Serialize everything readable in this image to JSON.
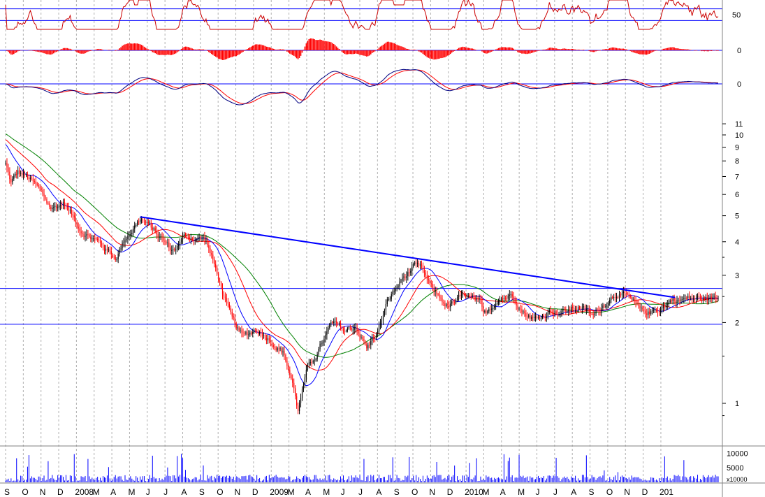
{
  "chart_data": {
    "type": "candlestick",
    "title": "",
    "colors": {
      "up_candle": "#000000",
      "down_candle": "#ff0000",
      "ma_short": "#0000ff",
      "ma_mid": "#ff0000",
      "ma_long": "#008000",
      "trendline": "#0000ff",
      "horizontal_lines": "#0000ff",
      "oscillator_line": "#cc0000",
      "histogram": "#ff0000",
      "signal_line": "#000080",
      "volume": "#0000ff",
      "gridlines": "#b0b0b0"
    },
    "x_axis": {
      "months": [
        "S",
        "O",
        "N",
        "D",
        "2008",
        "M",
        "A",
        "M",
        "J",
        "J",
        "A",
        "S",
        "O",
        "N",
        "D",
        "2009",
        "M",
        "A",
        "M",
        "J",
        "J",
        "A",
        "S",
        "O",
        "N",
        "D",
        "2010",
        "M",
        "A",
        "M",
        "J",
        "J",
        "A",
        "S",
        "O",
        "N",
        "D",
        "201"
      ],
      "start": "2007-09",
      "end": "2011-01"
    },
    "price_panel": {
      "scale": "log",
      "ylim": [
        0.8,
        12
      ],
      "tick_labels": [
        "11",
        "10",
        "9",
        "8",
        "7",
        "6",
        "5",
        "4",
        "3",
        "2",
        "1"
      ],
      "tick_values": [
        11,
        10,
        9,
        8,
        7,
        6,
        5,
        4,
        3,
        2,
        1
      ],
      "anchors": [
        {
          "m": 0.0,
          "v": 7.8
        },
        {
          "m": 0.3,
          "v": 6.6
        },
        {
          "m": 0.7,
          "v": 7.2
        },
        {
          "m": 1.3,
          "v": 6.9
        },
        {
          "m": 1.8,
          "v": 6.3
        },
        {
          "m": 2.6,
          "v": 5.3
        },
        {
          "m": 3.3,
          "v": 5.6
        },
        {
          "m": 4.2,
          "v": 4.5
        },
        {
          "m": 5.0,
          "v": 4.1
        },
        {
          "m": 5.6,
          "v": 3.8
        },
        {
          "m": 6.2,
          "v": 3.5
        },
        {
          "m": 6.8,
          "v": 4.2
        },
        {
          "m": 7.6,
          "v": 4.9
        },
        {
          "m": 8.5,
          "v": 4.3
        },
        {
          "m": 9.4,
          "v": 3.7
        },
        {
          "m": 10.2,
          "v": 4.2
        },
        {
          "m": 11.3,
          "v": 4.1
        },
        {
          "m": 12.1,
          "v": 2.8
        },
        {
          "m": 12.8,
          "v": 2.0
        },
        {
          "m": 13.4,
          "v": 1.75
        },
        {
          "m": 14.2,
          "v": 1.9
        },
        {
          "m": 15.0,
          "v": 1.75
        },
        {
          "m": 15.7,
          "v": 1.55
        },
        {
          "m": 16.2,
          "v": 1.2
        },
        {
          "m": 16.5,
          "v": 0.95
        },
        {
          "m": 17.0,
          "v": 1.3
        },
        {
          "m": 17.6,
          "v": 1.55
        },
        {
          "m": 18.4,
          "v": 1.95
        },
        {
          "m": 19.2,
          "v": 1.85
        },
        {
          "m": 19.8,
          "v": 1.95
        },
        {
          "m": 20.4,
          "v": 1.6
        },
        {
          "m": 21.0,
          "v": 1.85
        },
        {
          "m": 21.6,
          "v": 2.4
        },
        {
          "m": 22.4,
          "v": 2.9
        },
        {
          "m": 23.0,
          "v": 3.2
        },
        {
          "m": 23.5,
          "v": 3.1
        },
        {
          "m": 24.1,
          "v": 2.6
        },
        {
          "m": 25.0,
          "v": 2.3
        },
        {
          "m": 26.0,
          "v": 2.5
        },
        {
          "m": 26.8,
          "v": 2.3
        },
        {
          "m": 27.0,
          "v": 2.05
        },
        {
          "m": 27.8,
          "v": 2.5
        },
        {
          "m": 28.7,
          "v": 2.55
        },
        {
          "m": 29.3,
          "v": 2.2
        },
        {
          "m": 30.0,
          "v": 2.05
        },
        {
          "m": 30.8,
          "v": 2.25
        },
        {
          "m": 31.6,
          "v": 2.2
        },
        {
          "m": 32.4,
          "v": 2.3
        },
        {
          "m": 33.2,
          "v": 2.1
        },
        {
          "m": 34.0,
          "v": 2.45
        },
        {
          "m": 34.6,
          "v": 2.65
        },
        {
          "m": 35.3,
          "v": 2.4
        },
        {
          "m": 35.9,
          "v": 2.15
        },
        {
          "m": 36.6,
          "v": 2.2
        },
        {
          "m": 37.3,
          "v": 2.35
        },
        {
          "m": 37.7,
          "v": 2.45
        }
      ],
      "trendline": {
        "from": {
          "m": 7.6,
          "v": 4.95
        },
        "to": {
          "m": 37.8,
          "v": 2.48
        }
      },
      "horizontal_levels": [
        2.68,
        1.97
      ]
    },
    "oscillator_panel": {
      "tick_label": "50",
      "upper_level": 60,
      "lower_level": 40,
      "range": [
        25,
        75
      ]
    },
    "histogram_panel": {
      "tick_label": "0"
    },
    "macd_panel": {
      "tick_label": "0"
    },
    "volume_panel": {
      "unit_label": "x10000",
      "tick_labels": [
        "10000",
        "5000"
      ],
      "tick_values": [
        10000,
        5000
      ],
      "ylim": [
        0,
        12000
      ]
    }
  }
}
